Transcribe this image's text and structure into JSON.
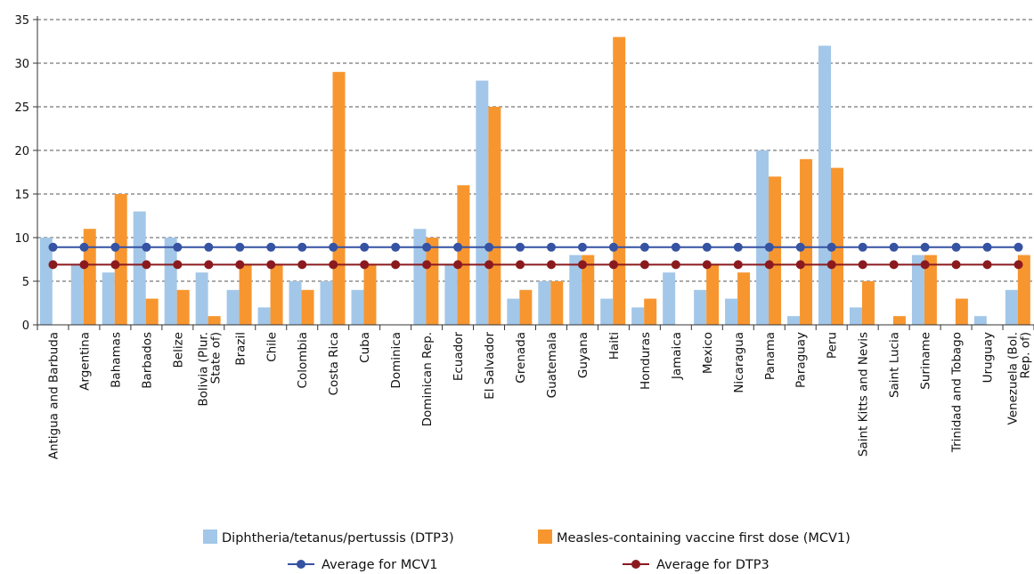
{
  "chart_data": {
    "type": "bar",
    "title": "",
    "xlabel": "",
    "ylabel": "",
    "ylim": [
      0,
      35
    ],
    "yticks": [
      0,
      5,
      10,
      15,
      20,
      25,
      30,
      35
    ],
    "grid": "horizontal-dashed",
    "legend_position": "bottom",
    "categories": [
      "Antigua and Barbuda",
      "Argentina",
      "Bahamas",
      "Barbados",
      "Belize",
      "Bolivia (Plur. State of)",
      "Brazil",
      "Chile",
      "Colombia",
      "Costa Rica",
      "Cuba",
      "Dominica",
      "Dominican Rep.",
      "Ecuador",
      "El Salvador",
      "Grenada",
      "Guatemala",
      "Guyana",
      "Haiti",
      "Honduras",
      "Jamaica",
      "Mexico",
      "Nicaragua",
      "Panama",
      "Paraguay",
      "Peru",
      "Saint Kitts and Nevis",
      "Saint Lucia",
      "Suriname",
      "Trinidad and Tobago",
      "Uruguay",
      "Venezuela (Bol. Rep. of)"
    ],
    "category_label_lines": [
      [
        "Antigua and Barbuda"
      ],
      [
        "Argentina"
      ],
      [
        "Bahamas"
      ],
      [
        "Barbados"
      ],
      [
        "Belize"
      ],
      [
        "Bolivia (Plur.",
        "State of)"
      ],
      [
        "Brazil"
      ],
      [
        "Chile"
      ],
      [
        "Colombia"
      ],
      [
        "Costa Rica"
      ],
      [
        "Cuba"
      ],
      [
        "Dominica"
      ],
      [
        "Dominican Rep."
      ],
      [
        "Ecuador"
      ],
      [
        "El Salvador"
      ],
      [
        "Grenada"
      ],
      [
        "Guatemala"
      ],
      [
        "Guyana"
      ],
      [
        "Haiti"
      ],
      [
        "Honduras"
      ],
      [
        "Jamaica"
      ],
      [
        "Mexico"
      ],
      [
        "Nicaragua"
      ],
      [
        "Panama"
      ],
      [
        "Paraguay"
      ],
      [
        "Peru"
      ],
      [
        "Saint Kitts and Nevis"
      ],
      [
        "Saint Lucia"
      ],
      [
        "Suriname"
      ],
      [
        "Trinidad and Tobago"
      ],
      [
        "Uruguay"
      ],
      [
        "Venezuela (Bol.",
        "Rep. of)"
      ]
    ],
    "series": [
      {
        "name": "Diphtheria/tetanus/pertussis (DTP3)",
        "kind": "bar",
        "color": "#a3c7e8",
        "values": [
          10,
          7,
          6,
          13,
          10,
          6,
          4,
          2,
          5,
          5,
          4,
          0,
          11,
          7,
          28,
          3,
          5,
          8,
          3,
          2,
          6,
          4,
          3,
          20,
          1,
          32,
          2,
          0,
          8,
          0,
          1,
          4
        ]
      },
      {
        "name": "Measles-containing vaccine first dose (MCV1)",
        "kind": "bar",
        "color": "#f7962f",
        "values": [
          0,
          11,
          15,
          3,
          4,
          1,
          7,
          7,
          4,
          29,
          7,
          0,
          10,
          16,
          25,
          4,
          5,
          8,
          33,
          3,
          0,
          7,
          6,
          17,
          19,
          18,
          5,
          1,
          8,
          3,
          0,
          8
        ]
      },
      {
        "name": "Average for MCV1",
        "kind": "line",
        "color": "#3552a3",
        "value": 8.9
      },
      {
        "name": "Average for DTP3",
        "kind": "line",
        "color": "#8b1a1f",
        "value": 6.9
      }
    ]
  }
}
